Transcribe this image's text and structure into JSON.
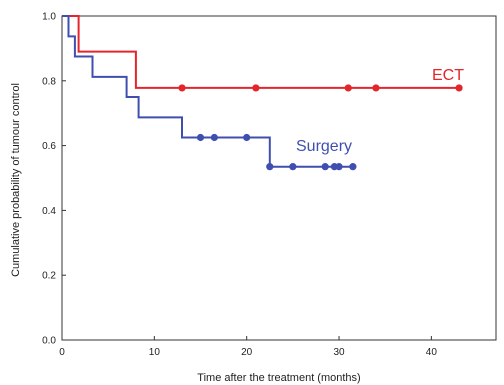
{
  "chart_data": {
    "type": "line",
    "step": true,
    "xlabel": "Time after the treatment (months)",
    "ylabel": "Cumulative probability of tumour control",
    "xlim": [
      0,
      47
    ],
    "ylim": [
      0,
      1.0
    ],
    "x_ticks": [
      0,
      10,
      20,
      30,
      40
    ],
    "y_ticks": [
      0.0,
      0.2,
      0.4,
      0.6,
      0.8,
      1.0
    ],
    "x_tick_labels": [
      "0",
      "10",
      "20",
      "30",
      "40"
    ],
    "y_tick_labels": [
      "0.0",
      "0.2",
      "0.4",
      "0.6",
      "0.8",
      "1.0"
    ],
    "grid": false,
    "series": [
      {
        "name": "ECT",
        "color": "#e3262b",
        "steps": [
          [
            0,
            1.0
          ],
          [
            1.8,
            1.0
          ],
          [
            1.8,
            0.89
          ],
          [
            8.0,
            0.89
          ],
          [
            8.0,
            0.778
          ],
          [
            43.0,
            0.778
          ]
        ],
        "censored_x": [
          13.0,
          21.0,
          31.0,
          34.0,
          43.0
        ],
        "censored_y": 0.778
      },
      {
        "name": "Surgery",
        "color": "#3f4fb0",
        "steps": [
          [
            0,
            1.0
          ],
          [
            0.7,
            1.0
          ],
          [
            0.7,
            0.937
          ],
          [
            1.4,
            0.937
          ],
          [
            1.4,
            0.875
          ],
          [
            3.3,
            0.875
          ],
          [
            3.3,
            0.812
          ],
          [
            7.0,
            0.812
          ],
          [
            7.0,
            0.75
          ],
          [
            8.3,
            0.75
          ],
          [
            8.3,
            0.687
          ],
          [
            13.0,
            0.687
          ],
          [
            13.0,
            0.625
          ],
          [
            22.5,
            0.625
          ],
          [
            22.5,
            0.535
          ],
          [
            31.5,
            0.535
          ]
        ],
        "censored_x": [
          15.0,
          16.5,
          20.0,
          22.5,
          25.0,
          28.5,
          29.5,
          30.0,
          31.5
        ],
        "censored_y": [
          0.625,
          0.625,
          0.625,
          0.535,
          0.535,
          0.535,
          0.535,
          0.535,
          0.535
        ]
      }
    ]
  }
}
